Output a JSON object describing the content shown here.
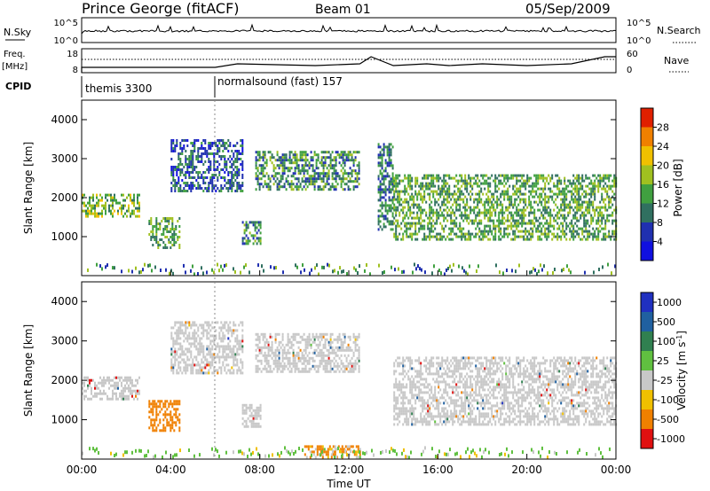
{
  "header": {
    "title": "Prince George (fitACF)",
    "beam": "Beam 01",
    "date": "05/Sep/2009"
  },
  "left_labels": {
    "nsky": "N.Sky",
    "freq_line1": "Freq.",
    "freq_line2": "[MHz]",
    "cpid": "CPID"
  },
  "right_labels": {
    "nsearch": "N.Search",
    "nave": "Nave"
  },
  "panel_ticks": {
    "noise_left": [
      "10^5",
      "10^0"
    ],
    "noise_right": [
      "10^5",
      "10^0"
    ],
    "freq_left": [
      "18",
      "8"
    ],
    "freq_right": [
      "60",
      "0"
    ]
  },
  "cpid_segments": [
    {
      "label": "themis 3300",
      "start_hour": 0.0
    },
    {
      "label": "normalsound (fast) 157",
      "start_hour": 6.0
    }
  ],
  "chart_data": [
    {
      "type": "heatmap",
      "ylabel": "Slant Range [km]",
      "xlabel": "",
      "xlim": [
        0,
        24
      ],
      "ylim": [
        0,
        4500
      ],
      "yticks": [
        "1000",
        "2000",
        "3000",
        "4000"
      ],
      "colorbar": {
        "label": "Power [dB]",
        "ticks": [
          "4",
          "8",
          "12",
          "16",
          "20",
          "24",
          "28"
        ],
        "colors": [
          "#1010e0",
          "#2030b0",
          "#307060",
          "#40a040",
          "#a0c020",
          "#f0c000",
          "#f08000",
          "#e02000"
        ]
      },
      "regions": [
        {
          "x": [
            0.0,
            2.6
          ],
          "y": [
            1500,
            2100
          ],
          "level": 16
        },
        {
          "x": [
            3.0,
            4.4
          ],
          "y": [
            700,
            1500
          ],
          "level": 14
        },
        {
          "x": [
            4.0,
            7.2
          ],
          "y": [
            2200,
            3500
          ],
          "level": 8
        },
        {
          "x": [
            7.2,
            8.0
          ],
          "y": [
            800,
            1400
          ],
          "level": 12
        },
        {
          "x": [
            7.8,
            12.5
          ],
          "y": [
            2200,
            3200
          ],
          "level": 12
        },
        {
          "x": [
            13.3,
            14.0
          ],
          "y": [
            1200,
            3400
          ],
          "level": 10
        },
        {
          "x": [
            14.0,
            24.0
          ],
          "y": [
            900,
            2600
          ],
          "level": 14
        }
      ]
    },
    {
      "type": "heatmap",
      "ylabel": "Slant Range [km]",
      "xlabel": "Time UT",
      "xlim": [
        0,
        24
      ],
      "ylim": [
        0,
        4500
      ],
      "xticks": [
        "00:00",
        "04:00",
        "08:00",
        "12:00",
        "16:00",
        "20:00",
        "00:00"
      ],
      "yticks": [
        "1000",
        "2000",
        "3000",
        "4000"
      ],
      "colorbar": {
        "label": "Velocity [m s^-1]",
        "ticks": [
          "1000",
          "500",
          "100",
          "25",
          "-25",
          "-100",
          "-500",
          "-1000"
        ],
        "colors": [
          "#2030c0",
          "#2060a0",
          "#308050",
          "#60c040",
          "#c8c8c8",
          "#f0c000",
          "#f08000",
          "#e01010"
        ]
      },
      "regions": [
        {
          "x": [
            0.0,
            2.6
          ],
          "y": [
            1500,
            2100
          ],
          "velocity": 0
        },
        {
          "x": [
            3.0,
            4.4
          ],
          "y": [
            700,
            1500
          ],
          "velocity": -300
        },
        {
          "x": [
            4.0,
            7.2
          ],
          "y": [
            2200,
            3500
          ],
          "velocity": 0
        },
        {
          "x": [
            7.2,
            8.0
          ],
          "y": [
            800,
            1400
          ],
          "velocity": 0
        },
        {
          "x": [
            7.8,
            12.5
          ],
          "y": [
            2200,
            3200
          ],
          "velocity": 0
        },
        {
          "x": [
            10.0,
            12.5
          ],
          "y": [
            50,
            350
          ],
          "velocity": -150
        },
        {
          "x": [
            14.0,
            24.0
          ],
          "y": [
            900,
            2600
          ],
          "velocity": 0
        }
      ]
    }
  ]
}
